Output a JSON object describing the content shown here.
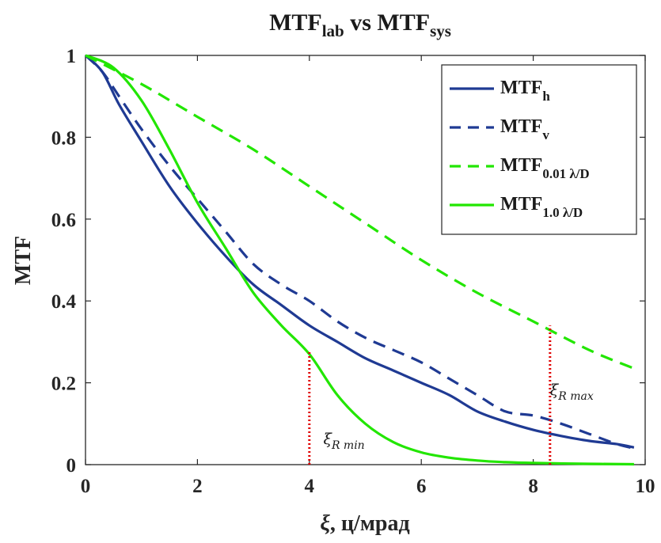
{
  "chart_data": {
    "type": "line",
    "title": {
      "main": "MTF",
      "sub1": "lab",
      "mid": " vs MTF",
      "sub2": "sys"
    },
    "xlabel": {
      "xi": "ξ",
      "rest": ", ц/мрад"
    },
    "ylabel": "MTF",
    "xlim": [
      0,
      10
    ],
    "ylim": [
      0,
      1
    ],
    "xticks": [
      "0",
      "2",
      "4",
      "6",
      "8",
      "10"
    ],
    "yticks": [
      "0",
      "0.2",
      "0.4",
      "0.6",
      "0.8",
      "1"
    ],
    "legend_position": "top-right",
    "series": [
      {
        "key": "h",
        "legend_main": "MTF",
        "legend_sub": "h",
        "color": "#1f3a93",
        "dash": "solid",
        "x": [
          0,
          0.3,
          0.6,
          1.0,
          1.5,
          2.0,
          2.5,
          3.0,
          3.5,
          4.0,
          4.5,
          5.0,
          5.5,
          6.0,
          6.5,
          7.0,
          7.5,
          8.0,
          8.5,
          9.0,
          9.5,
          9.8
        ],
        "y": [
          1.0,
          0.96,
          0.88,
          0.79,
          0.68,
          0.59,
          0.51,
          0.44,
          0.39,
          0.34,
          0.3,
          0.26,
          0.23,
          0.2,
          0.17,
          0.13,
          0.105,
          0.085,
          0.07,
          0.058,
          0.05,
          0.042
        ]
      },
      {
        "key": "v",
        "legend_main": "MTF",
        "legend_sub": "v",
        "color": "#1f3a93",
        "dash": "dashed",
        "x": [
          0,
          0.3,
          0.6,
          1.0,
          1.5,
          2.0,
          2.5,
          3.0,
          3.5,
          4.0,
          4.5,
          5.0,
          5.5,
          6.0,
          6.5,
          7.0,
          7.5,
          8.0,
          8.5,
          9.0,
          9.5,
          9.8
        ],
        "y": [
          1.0,
          0.96,
          0.9,
          0.82,
          0.73,
          0.65,
          0.57,
          0.49,
          0.44,
          0.4,
          0.35,
          0.31,
          0.28,
          0.25,
          0.21,
          0.17,
          0.13,
          0.12,
          0.1,
          0.075,
          0.05,
          0.04
        ]
      },
      {
        "key": "d001",
        "legend_main": "MTF",
        "legend_sub": "0.01 λ/D",
        "color": "#22e600",
        "dash": "dashed",
        "x": [
          0,
          1,
          2,
          3,
          4,
          5,
          6,
          7,
          8,
          9,
          9.8
        ],
        "y": [
          1.0,
          0.93,
          0.85,
          0.77,
          0.68,
          0.59,
          0.5,
          0.42,
          0.35,
          0.28,
          0.235
        ]
      },
      {
        "key": "d10",
        "legend_main": "MTF",
        "legend_sub": "1.0 λ/D",
        "color": "#22e600",
        "dash": "solid",
        "x": [
          0,
          0.5,
          1.0,
          1.5,
          2.0,
          2.5,
          3.0,
          3.5,
          4.0,
          4.5,
          5.0,
          5.5,
          6.0,
          6.5,
          7.0,
          7.5,
          8.0,
          9.0,
          9.8
        ],
        "y": [
          1.0,
          0.97,
          0.89,
          0.77,
          0.64,
          0.53,
          0.42,
          0.34,
          0.27,
          0.17,
          0.1,
          0.055,
          0.03,
          0.017,
          0.01,
          0.006,
          0.004,
          0.002,
          0.001
        ]
      }
    ],
    "annotations": [
      {
        "key": "rmin",
        "x": 4.0,
        "y_top": 0.275,
        "base": "ξ",
        "sub": "R min",
        "label_x": 4.25,
        "label_y": 0.05
      },
      {
        "key": "rmax",
        "x": 8.3,
        "y_top": 0.34,
        "base": "ξ",
        "sub": "R max",
        "label_x": 8.3,
        "label_y": 0.17
      }
    ]
  }
}
